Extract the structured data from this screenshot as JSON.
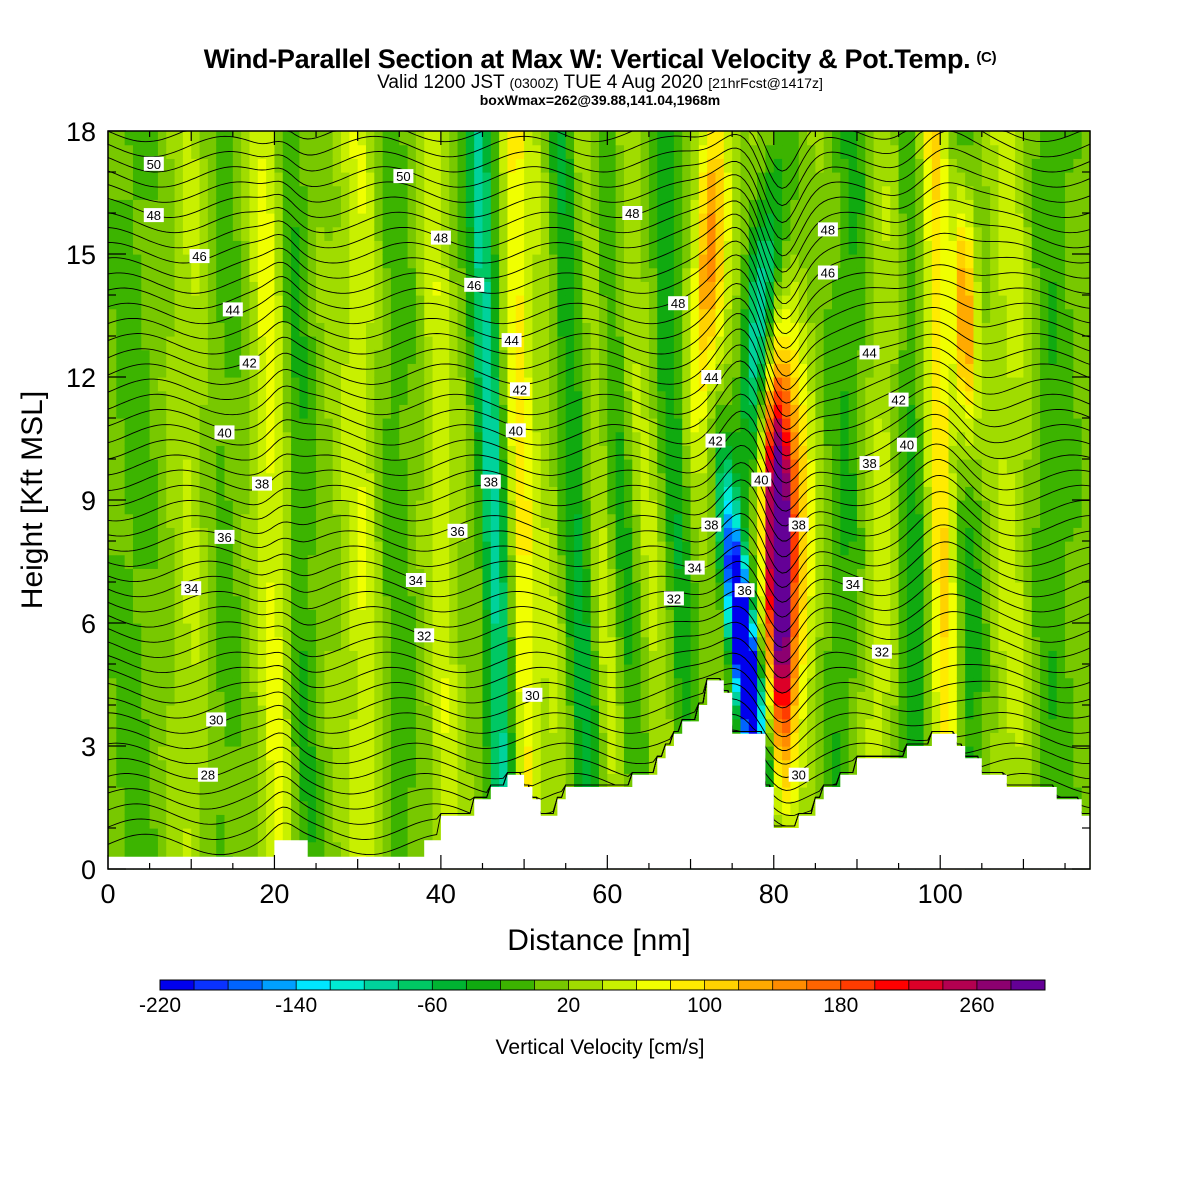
{
  "header": {
    "title": "Wind-Parallel Section at Max W: Vertical Velocity & Pot.Temp.",
    "copyright": "(C)",
    "valid_prefix": "Valid 1200 JST",
    "valid_zulu": "(0300Z)",
    "valid_date": "TUE 4 Aug 2020",
    "forecast": "[21hrFcst@1417z]",
    "box_info": "boxWmax=262@39.88,141.04,1968m"
  },
  "chart_data": {
    "type": "heatmap",
    "xlabel": "Distance [nm]",
    "ylabel": "Height [Kft MSL]",
    "xlim": [
      0,
      118
    ],
    "ylim": [
      0,
      18
    ],
    "x_ticks": [
      0,
      20,
      40,
      60,
      80,
      100
    ],
    "y_ticks": [
      0,
      3,
      6,
      9,
      12,
      15,
      18
    ],
    "colorbar": {
      "label": "Vertical Velocity [cm/s]",
      "min": -220,
      "max": 300,
      "step": 20,
      "tick_labels": [
        -220,
        -140,
        -60,
        20,
        100,
        180,
        260
      ],
      "colors": [
        "#0000ee",
        "#0a32ff",
        "#0064ff",
        "#00a0ff",
        "#00e6ff",
        "#00ebd2",
        "#00d29b",
        "#00c864",
        "#00b432",
        "#10aa10",
        "#3cb400",
        "#78c800",
        "#a0dc00",
        "#c8f000",
        "#f0ff00",
        "#ffeb00",
        "#ffd200",
        "#ffaa00",
        "#ff8c00",
        "#ff6400",
        "#ff3c00",
        "#ff0000",
        "#dc0028",
        "#b40050",
        "#8c0070",
        "#640096"
      ]
    },
    "theta_contour_labels": [
      {
        "x": 5.5,
        "y": 17.2,
        "value": "50"
      },
      {
        "x": 35.5,
        "y": 16.9,
        "value": "50"
      },
      {
        "x": 5.5,
        "y": 15.95,
        "value": "48"
      },
      {
        "x": 40,
        "y": 15.4,
        "value": "48"
      },
      {
        "x": 63,
        "y": 16.0,
        "value": "48"
      },
      {
        "x": 68.5,
        "y": 13.8,
        "value": "48"
      },
      {
        "x": 86.5,
        "y": 15.6,
        "value": "48"
      },
      {
        "x": 11,
        "y": 14.95,
        "value": "46"
      },
      {
        "x": 44,
        "y": 14.25,
        "value": "46"
      },
      {
        "x": 86.5,
        "y": 14.55,
        "value": "46"
      },
      {
        "x": 15,
        "y": 13.65,
        "value": "44"
      },
      {
        "x": 48.5,
        "y": 12.9,
        "value": "44"
      },
      {
        "x": 72.5,
        "y": 12.0,
        "value": "44"
      },
      {
        "x": 91.5,
        "y": 12.6,
        "value": "44"
      },
      {
        "x": 17,
        "y": 12.35,
        "value": "42"
      },
      {
        "x": 49.5,
        "y": 11.7,
        "value": "42"
      },
      {
        "x": 73,
        "y": 10.45,
        "value": "42"
      },
      {
        "x": 95,
        "y": 11.45,
        "value": "42"
      },
      {
        "x": 14,
        "y": 10.65,
        "value": "40"
      },
      {
        "x": 49,
        "y": 10.7,
        "value": "40"
      },
      {
        "x": 78.5,
        "y": 9.5,
        "value": "40"
      },
      {
        "x": 96,
        "y": 10.35,
        "value": "40"
      },
      {
        "x": 18.5,
        "y": 9.4,
        "value": "38"
      },
      {
        "x": 46,
        "y": 9.45,
        "value": "38"
      },
      {
        "x": 72.5,
        "y": 8.4,
        "value": "38"
      },
      {
        "x": 83,
        "y": 8.4,
        "value": "38"
      },
      {
        "x": 91.5,
        "y": 9.9,
        "value": "38"
      },
      {
        "x": 14,
        "y": 8.1,
        "value": "36"
      },
      {
        "x": 42,
        "y": 8.25,
        "value": "36"
      },
      {
        "x": 76.5,
        "y": 6.8,
        "value": "36"
      },
      {
        "x": 10,
        "y": 6.85,
        "value": "34"
      },
      {
        "x": 37,
        "y": 7.05,
        "value": "34"
      },
      {
        "x": 70.5,
        "y": 7.35,
        "value": "34"
      },
      {
        "x": 89.5,
        "y": 6.95,
        "value": "34"
      },
      {
        "x": 38,
        "y": 5.7,
        "value": "32"
      },
      {
        "x": 68,
        "y": 6.6,
        "value": "32"
      },
      {
        "x": 93,
        "y": 5.3,
        "value": "32"
      },
      {
        "x": 13,
        "y": 3.65,
        "value": "30"
      },
      {
        "x": 51,
        "y": 4.25,
        "value": "30"
      },
      {
        "x": 83,
        "y": 2.3,
        "value": "30"
      },
      {
        "x": 12,
        "y": 2.3,
        "value": "28"
      }
    ],
    "terrain_profile": [
      [
        0,
        0.3
      ],
      [
        20,
        0.3
      ],
      [
        20,
        0.7
      ],
      [
        24,
        0.7
      ],
      [
        24,
        0.3
      ],
      [
        38,
        0.3
      ],
      [
        38,
        0.7
      ],
      [
        40,
        0.7
      ],
      [
        40,
        1.3
      ],
      [
        44,
        1.3
      ],
      [
        44,
        1.7
      ],
      [
        46,
        1.7
      ],
      [
        46,
        2.0
      ],
      [
        48,
        2.0
      ],
      [
        48,
        2.3
      ],
      [
        50,
        2.3
      ],
      [
        50,
        2.0
      ],
      [
        51,
        2.0
      ],
      [
        51,
        1.7
      ],
      [
        52,
        1.7
      ],
      [
        52,
        1.3
      ],
      [
        54,
        1.3
      ],
      [
        54,
        1.7
      ],
      [
        55,
        1.7
      ],
      [
        55,
        2.0
      ],
      [
        63,
        2.0
      ],
      [
        63,
        2.3
      ],
      [
        66,
        2.3
      ],
      [
        66,
        2.7
      ],
      [
        67,
        2.7
      ],
      [
        67,
        3.0
      ],
      [
        68,
        3.0
      ],
      [
        68,
        3.3
      ],
      [
        69,
        3.3
      ],
      [
        69,
        3.6
      ],
      [
        71,
        3.6
      ],
      [
        71,
        4.0
      ],
      [
        72,
        4.0
      ],
      [
        72,
        4.6
      ],
      [
        74,
        4.6
      ],
      [
        74,
        4.3
      ],
      [
        75,
        4.3
      ],
      [
        75,
        3.3
      ],
      [
        79,
        3.3
      ],
      [
        79,
        2.0
      ],
      [
        80,
        2.0
      ],
      [
        80,
        1.0
      ],
      [
        83,
        1.0
      ],
      [
        83,
        1.3
      ],
      [
        85,
        1.3
      ],
      [
        85,
        1.7
      ],
      [
        86,
        1.7
      ],
      [
        86,
        2.0
      ],
      [
        88,
        2.0
      ],
      [
        88,
        2.3
      ],
      [
        90,
        2.3
      ],
      [
        90,
        2.7
      ],
      [
        96,
        2.7
      ],
      [
        96,
        3.0
      ],
      [
        99,
        3.0
      ],
      [
        99,
        3.3
      ],
      [
        102,
        3.3
      ],
      [
        102,
        3.0
      ],
      [
        103,
        3.0
      ],
      [
        103,
        2.7
      ],
      [
        105,
        2.7
      ],
      [
        105,
        2.3
      ],
      [
        108,
        2.3
      ],
      [
        108,
        2.0
      ],
      [
        114,
        2.0
      ],
      [
        114,
        1.7
      ],
      [
        117,
        1.7
      ],
      [
        117,
        1.3
      ],
      [
        118,
        1.3
      ],
      [
        118,
        0
      ]
    ]
  }
}
